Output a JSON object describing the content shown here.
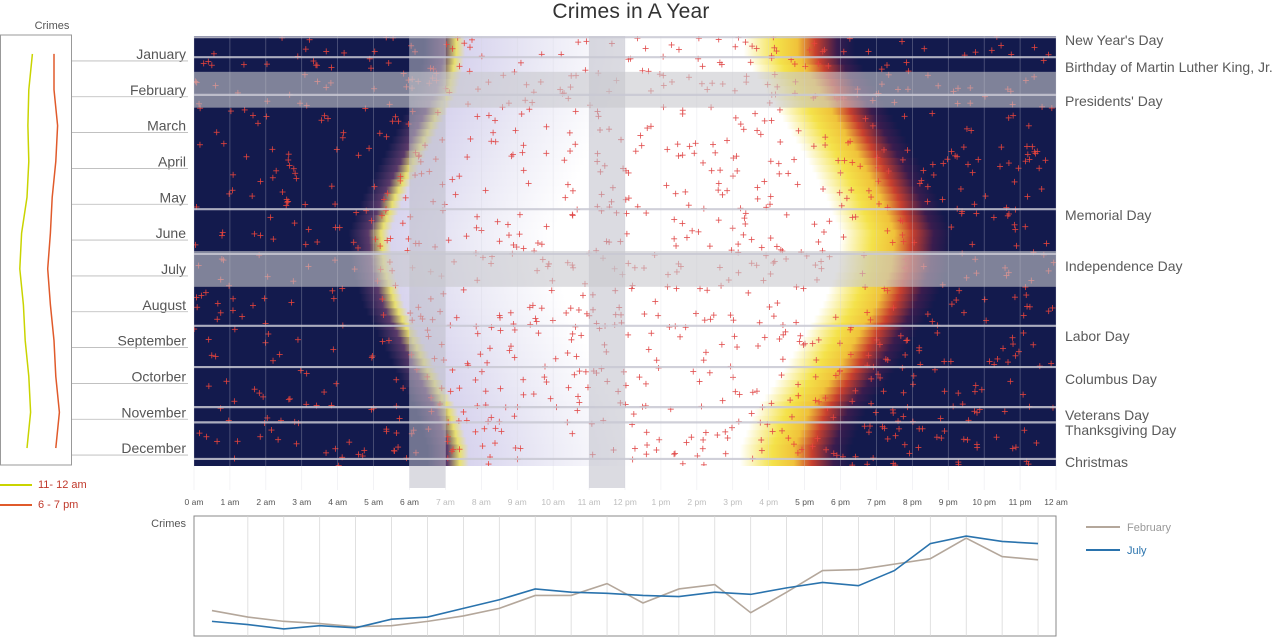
{
  "chart_data": [
    {
      "type": "heatmap",
      "title": "Crimes in A Year",
      "rows": [
        "January",
        "February",
        "March",
        "April",
        "May",
        "June",
        "July",
        "August",
        "September",
        "Octorber",
        "November",
        "December"
      ],
      "columns": [
        "0 am",
        "1 am",
        "2 am",
        "3 am",
        "4 am",
        "5 am",
        "6 am",
        "7 am",
        "8 am",
        "9 am",
        "10 am",
        "11 am",
        "12 pm",
        "1 pm",
        "2 pm",
        "3 pm",
        "4 pm",
        "5 pm",
        "6 pm",
        "7 pm",
        "8 pm",
        "9 pm",
        "10 pm",
        "11 pm",
        "12 am"
      ],
      "highlight_rows": [
        "February",
        "July"
      ],
      "highlight_columns": [
        "6 am",
        "11 am"
      ],
      "holidays": [
        {
          "name": "New Year's Day",
          "day_of_year": 1
        },
        {
          "name": "Birthday of Martin Luther King, Jr.",
          "day_of_year": 18
        },
        {
          "name": "Presidents' Day",
          "day_of_year": 50
        },
        {
          "name": "Memorial Day",
          "day_of_year": 147
        },
        {
          "name": "Independence Day",
          "day_of_year": 185
        },
        {
          "name": "Labor Day",
          "day_of_year": 246
        },
        {
          "name": "Columbus Day",
          "day_of_year": 281
        },
        {
          "name": "Veterans Day",
          "day_of_year": 315
        },
        {
          "name": "Thanksgiving Day",
          "day_of_year": 328
        },
        {
          "name": "Christmas",
          "day_of_year": 359
        }
      ],
      "daylight_hours": {
        "months": [
          "January",
          "February",
          "March",
          "April",
          "May",
          "June",
          "July",
          "August",
          "September",
          "Octorber",
          "November",
          "December"
        ],
        "sunrise": [
          7.3,
          7.1,
          6.6,
          6.1,
          5.6,
          5.2,
          5.3,
          5.6,
          6.1,
          6.6,
          7.1,
          7.4
        ],
        "sunset": [
          17.0,
          17.6,
          18.2,
          18.8,
          19.3,
          19.7,
          19.6,
          19.2,
          18.6,
          18.0,
          17.3,
          16.9
        ]
      }
    },
    {
      "type": "line",
      "ylabel": "Crimes",
      "categories": [
        "January",
        "February",
        "March",
        "April",
        "May",
        "June",
        "July",
        "August",
        "September",
        "Octorber",
        "November",
        "December"
      ],
      "series": [
        {
          "name": "11- 12 am",
          "color": "#c9d400",
          "values": [
            36,
            32,
            31,
            32,
            30,
            24,
            22,
            26,
            28,
            32,
            34,
            30
          ]
        },
        {
          "name": "6 - 7 pm",
          "color": "#e05a2b",
          "values": [
            60,
            60,
            64,
            62,
            58,
            56,
            53,
            56,
            60,
            62,
            66,
            62
          ]
        }
      ],
      "ylim": [
        0,
        80
      ],
      "legend": "bottom-left"
    },
    {
      "type": "line",
      "ylabel": "Crimes",
      "categories": [
        "0 am",
        "1 am",
        "2 am",
        "3 am",
        "4 am",
        "5 am",
        "6 am",
        "7 am",
        "8 am",
        "9 am",
        "10 am",
        "11 am",
        "12 pm",
        "1 pm",
        "2 pm",
        "3 pm",
        "4 pm",
        "5 pm",
        "6 pm",
        "7 pm",
        "8 pm",
        "9 pm",
        "10 pm",
        "11 pm"
      ],
      "series": [
        {
          "name": "February",
          "color": "#b4a79b",
          "values": [
            18,
            12,
            8,
            6,
            3,
            4,
            8,
            13,
            20,
            32,
            32,
            43,
            25,
            38,
            42,
            16,
            35,
            55,
            56,
            61,
            66,
            85,
            68,
            65
          ]
        },
        {
          "name": "July",
          "color": "#2a73ad",
          "values": [
            8,
            5,
            1,
            4,
            2,
            10,
            12,
            20,
            28,
            38,
            35,
            34,
            32,
            31,
            35,
            33,
            39,
            44,
            41,
            55,
            80,
            87,
            82,
            80
          ]
        }
      ],
      "ylim": [
        0,
        100
      ],
      "legend": "right"
    }
  ]
}
